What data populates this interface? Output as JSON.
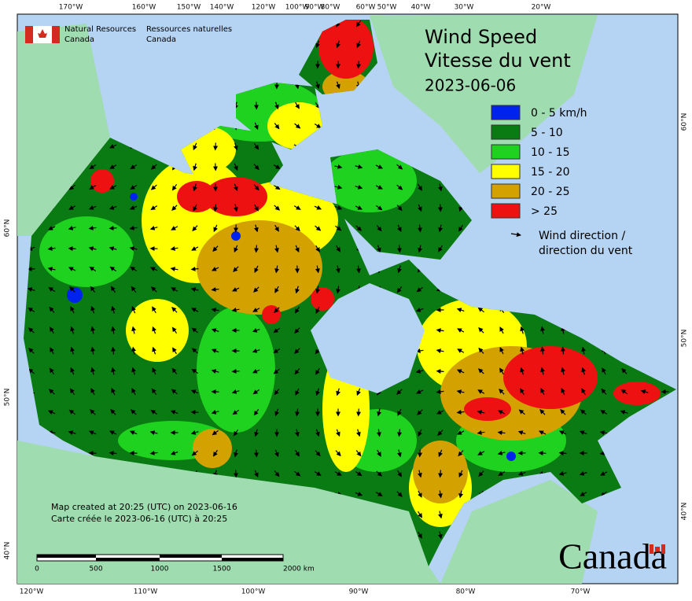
{
  "logo": {
    "en": [
      "Natural Resources",
      "Canada"
    ],
    "fr": [
      "Ressources naturelles",
      "Canada"
    ]
  },
  "title": [
    "Wind Speed",
    "Vitesse du vent"
  ],
  "date": "2023-06-06",
  "legend": {
    "items": [
      {
        "label": "0 - 5 km/h",
        "color": "#0022ee"
      },
      {
        "label": "5 - 10",
        "color": "#0a7a12"
      },
      {
        "label": "10 - 15",
        "color": "#1fd21f"
      },
      {
        "label": "15 - 20",
        "color": "#ffff00"
      },
      {
        "label": "20 - 25",
        "color": "#d4a200"
      },
      {
        "label": "> 25",
        "color": "#ee1111"
      }
    ],
    "arrow_label": [
      "Wind direction /",
      "direction du vent"
    ]
  },
  "graticule": {
    "top": [
      "170°W",
      "160°W",
      "150°W",
      "140°W",
      "120°W",
      "100°W",
      "90°W",
      "80°W",
      "60°W",
      "50°W",
      "40°W",
      "30°W",
      "20°W"
    ],
    "bottom": [
      "120°W",
      "110°W",
      "100°W",
      "90°W",
      "80°W",
      "70°W"
    ],
    "left": [
      "60°N",
      "50°N",
      "40°N"
    ],
    "right": [
      "60°N",
      "50°N",
      "40°N"
    ]
  },
  "notes": [
    "Map created at 20:25 (UTC) on 2023-06-16",
    "Carte créée le 2023-06-16 (UTC) à 20:25"
  ],
  "scale": [
    "0",
    "500",
    "1000",
    "1500",
    "2000  km"
  ],
  "wordmark": "Canada"
}
